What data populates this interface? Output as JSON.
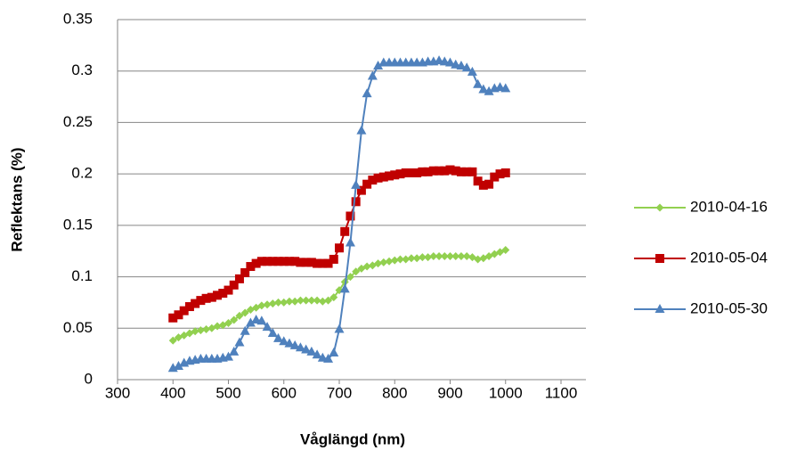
{
  "chart_data": {
    "type": "line",
    "xlabel": "Våglängd (nm)",
    "ylabel": "Reflektans (%)",
    "x": [
      400,
      410,
      420,
      430,
      440,
      450,
      460,
      470,
      480,
      490,
      500,
      510,
      520,
      530,
      540,
      550,
      560,
      570,
      580,
      590,
      600,
      610,
      620,
      630,
      640,
      650,
      660,
      670,
      680,
      690,
      700,
      710,
      720,
      730,
      740,
      750,
      760,
      770,
      780,
      790,
      800,
      810,
      820,
      830,
      840,
      850,
      860,
      870,
      880,
      890,
      900,
      910,
      920,
      930,
      940,
      950,
      960,
      970,
      980,
      990,
      1000
    ],
    "series": [
      {
        "name": "2010-04-16",
        "color": "#92d050",
        "marker": "diamond",
        "values": [
          0.038,
          0.041,
          0.043,
          0.045,
          0.047,
          0.048,
          0.049,
          0.05,
          0.052,
          0.053,
          0.055,
          0.058,
          0.062,
          0.065,
          0.068,
          0.07,
          0.072,
          0.073,
          0.074,
          0.075,
          0.075,
          0.076,
          0.076,
          0.077,
          0.077,
          0.077,
          0.077,
          0.076,
          0.077,
          0.08,
          0.087,
          0.095,
          0.1,
          0.105,
          0.108,
          0.11,
          0.111,
          0.113,
          0.114,
          0.115,
          0.116,
          0.117,
          0.117,
          0.118,
          0.118,
          0.119,
          0.119,
          0.12,
          0.12,
          0.12,
          0.12,
          0.12,
          0.12,
          0.12,
          0.119,
          0.117,
          0.118,
          0.12,
          0.122,
          0.124,
          0.126
        ]
      },
      {
        "name": "2010-05-04",
        "color": "#c00000",
        "marker": "square",
        "values": [
          0.06,
          0.063,
          0.067,
          0.071,
          0.074,
          0.077,
          0.079,
          0.08,
          0.082,
          0.084,
          0.087,
          0.092,
          0.098,
          0.104,
          0.11,
          0.113,
          0.115,
          0.115,
          0.115,
          0.115,
          0.115,
          0.115,
          0.115,
          0.114,
          0.114,
          0.114,
          0.113,
          0.113,
          0.113,
          0.117,
          0.128,
          0.144,
          0.159,
          0.173,
          0.184,
          0.19,
          0.194,
          0.196,
          0.197,
          0.198,
          0.199,
          0.2,
          0.201,
          0.201,
          0.201,
          0.202,
          0.202,
          0.203,
          0.203,
          0.203,
          0.204,
          0.203,
          0.202,
          0.202,
          0.202,
          0.193,
          0.189,
          0.19,
          0.197,
          0.2,
          0.201
        ]
      },
      {
        "name": "2010-05-30",
        "color": "#4f81bd",
        "marker": "triangle",
        "values": [
          0.011,
          0.013,
          0.016,
          0.018,
          0.019,
          0.02,
          0.02,
          0.02,
          0.02,
          0.021,
          0.022,
          0.027,
          0.036,
          0.047,
          0.055,
          0.058,
          0.057,
          0.051,
          0.045,
          0.04,
          0.037,
          0.035,
          0.033,
          0.031,
          0.029,
          0.027,
          0.024,
          0.021,
          0.02,
          0.026,
          0.049,
          0.088,
          0.133,
          0.189,
          0.242,
          0.278,
          0.295,
          0.305,
          0.308,
          0.308,
          0.308,
          0.308,
          0.308,
          0.308,
          0.308,
          0.308,
          0.309,
          0.309,
          0.31,
          0.309,
          0.308,
          0.306,
          0.305,
          0.303,
          0.299,
          0.287,
          0.282,
          0.28,
          0.283,
          0.284,
          0.283
        ]
      }
    ],
    "xlim": [
      300,
      1100
    ],
    "xticks": [
      300,
      400,
      500,
      600,
      700,
      800,
      900,
      1000,
      1100
    ],
    "ylim": [
      0,
      0.35
    ],
    "yticks": [
      0,
      0.05,
      0.1,
      0.15,
      0.2,
      0.25,
      0.3,
      0.35
    ],
    "grid": true,
    "legend": "right"
  }
}
